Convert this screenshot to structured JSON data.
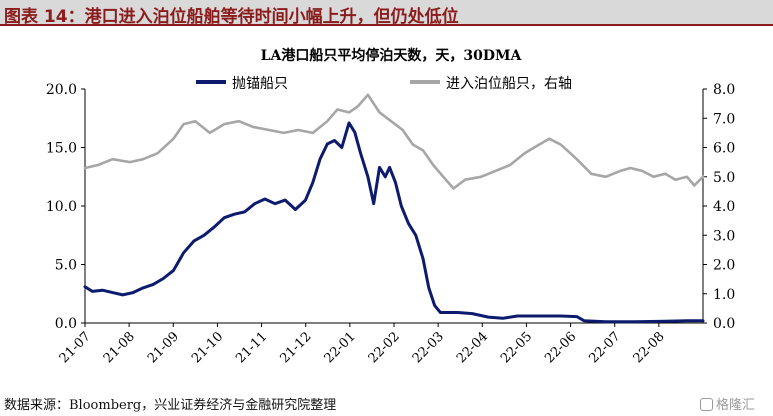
{
  "figure": {
    "title": "图表 14：港口进入泊位船舶等待时间小幅上升，但仍处低位",
    "source": "数据来源：Bloomberg，兴业证券经济与金融研究院整理",
    "watermark": "格隆汇"
  },
  "chart_data": {
    "type": "line",
    "title": "LA港口船只平均停泊天数，天，30DMA",
    "x_ticks": [
      "21-07",
      "21-08",
      "21-09",
      "21-10",
      "21-11",
      "21-12",
      "22-01",
      "22-02",
      "22-03",
      "22-04",
      "22-05",
      "22-06",
      "22-07",
      "22-08"
    ],
    "x_range": [
      "2021-07-01",
      "2022-08-31"
    ],
    "y_left": {
      "range": [
        0,
        20
      ],
      "ticks": [
        "0.0",
        "5.0",
        "10.0",
        "15.0",
        "20.0"
      ]
    },
    "y_right": {
      "range": [
        0,
        8
      ],
      "ticks": [
        "0.0",
        "1.0",
        "2.0",
        "3.0",
        "4.0",
        "5.0",
        "6.0",
        "7.0",
        "8.0"
      ]
    },
    "legend_position": "top",
    "series": [
      {
        "name": "抛锚船只",
        "axis": "left",
        "color": "#0d1b6e",
        "points": [
          [
            "2021-07-01",
            3.1
          ],
          [
            "2021-07-06",
            2.7
          ],
          [
            "2021-07-13",
            2.8
          ],
          [
            "2021-07-20",
            2.6
          ],
          [
            "2021-07-27",
            2.4
          ],
          [
            "2021-08-03",
            2.6
          ],
          [
            "2021-08-10",
            3.0
          ],
          [
            "2021-08-17",
            3.3
          ],
          [
            "2021-08-24",
            3.8
          ],
          [
            "2021-08-31",
            4.5
          ],
          [
            "2021-09-07",
            6.0
          ],
          [
            "2021-09-14",
            7.0
          ],
          [
            "2021-09-21",
            7.5
          ],
          [
            "2021-09-28",
            8.2
          ],
          [
            "2021-10-05",
            9.0
          ],
          [
            "2021-10-12",
            9.3
          ],
          [
            "2021-10-19",
            9.5
          ],
          [
            "2021-10-26",
            10.2
          ],
          [
            "2021-11-02",
            10.6
          ],
          [
            "2021-11-09",
            10.2
          ],
          [
            "2021-11-16",
            10.5
          ],
          [
            "2021-11-23",
            9.7
          ],
          [
            "2021-11-30",
            10.5
          ],
          [
            "2021-12-05",
            12.0
          ],
          [
            "2021-12-10",
            14.0
          ],
          [
            "2021-12-15",
            15.3
          ],
          [
            "2021-12-20",
            15.6
          ],
          [
            "2021-12-25",
            15.0
          ],
          [
            "2021-12-30",
            17.1
          ],
          [
            "2022-01-03",
            16.3
          ],
          [
            "2022-01-07",
            14.5
          ],
          [
            "2022-01-12",
            12.5
          ],
          [
            "2022-01-16",
            10.2
          ],
          [
            "2022-01-20",
            13.3
          ],
          [
            "2022-01-24",
            12.5
          ],
          [
            "2022-01-27",
            13.3
          ],
          [
            "2022-01-31",
            12.0
          ],
          [
            "2022-02-04",
            10.0
          ],
          [
            "2022-02-09",
            8.5
          ],
          [
            "2022-02-14",
            7.5
          ],
          [
            "2022-02-19",
            5.5
          ],
          [
            "2022-02-23",
            3.0
          ],
          [
            "2022-02-27",
            1.5
          ],
          [
            "2022-03-03",
            0.9
          ],
          [
            "2022-03-15",
            0.9
          ],
          [
            "2022-03-25",
            0.8
          ],
          [
            "2022-04-05",
            0.5
          ],
          [
            "2022-04-15",
            0.4
          ],
          [
            "2022-04-25",
            0.6
          ],
          [
            "2022-05-10",
            0.6
          ],
          [
            "2022-05-25",
            0.6
          ],
          [
            "2022-06-05",
            0.55
          ],
          [
            "2022-06-10",
            0.2
          ],
          [
            "2022-06-25",
            0.1
          ],
          [
            "2022-07-15",
            0.1
          ],
          [
            "2022-08-05",
            0.15
          ],
          [
            "2022-08-20",
            0.2
          ],
          [
            "2022-08-31",
            0.2
          ]
        ]
      },
      {
        "name": "进入泊位船只，右轴",
        "axis": "right",
        "color": "#a6a6a6",
        "points": [
          [
            "2021-07-01",
            5.3
          ],
          [
            "2021-07-10",
            5.4
          ],
          [
            "2021-07-20",
            5.6
          ],
          [
            "2021-08-01",
            5.5
          ],
          [
            "2021-08-10",
            5.6
          ],
          [
            "2021-08-20",
            5.8
          ],
          [
            "2021-08-31",
            6.3
          ],
          [
            "2021-09-07",
            6.8
          ],
          [
            "2021-09-15",
            6.9
          ],
          [
            "2021-09-25",
            6.5
          ],
          [
            "2021-10-05",
            6.8
          ],
          [
            "2021-10-15",
            6.9
          ],
          [
            "2021-10-25",
            6.7
          ],
          [
            "2021-11-05",
            6.6
          ],
          [
            "2021-11-15",
            6.5
          ],
          [
            "2021-11-25",
            6.6
          ],
          [
            "2021-12-05",
            6.5
          ],
          [
            "2021-12-15",
            6.9
          ],
          [
            "2021-12-22",
            7.3
          ],
          [
            "2021-12-30",
            7.2
          ],
          [
            "2022-01-05",
            7.4
          ],
          [
            "2022-01-12",
            7.8
          ],
          [
            "2022-01-20",
            7.2
          ],
          [
            "2022-01-28",
            6.9
          ],
          [
            "2022-02-05",
            6.6
          ],
          [
            "2022-02-12",
            6.1
          ],
          [
            "2022-02-19",
            5.9
          ],
          [
            "2022-02-26",
            5.4
          ],
          [
            "2022-03-05",
            5.0
          ],
          [
            "2022-03-12",
            4.6
          ],
          [
            "2022-03-20",
            4.9
          ],
          [
            "2022-03-31",
            5.0
          ],
          [
            "2022-04-10",
            5.2
          ],
          [
            "2022-04-20",
            5.4
          ],
          [
            "2022-04-30",
            5.8
          ],
          [
            "2022-05-10",
            6.1
          ],
          [
            "2022-05-17",
            6.3
          ],
          [
            "2022-05-25",
            6.1
          ],
          [
            "2022-06-05",
            5.6
          ],
          [
            "2022-06-15",
            5.1
          ],
          [
            "2022-06-25",
            5.0
          ],
          [
            "2022-07-05",
            5.2
          ],
          [
            "2022-07-12",
            5.3
          ],
          [
            "2022-07-20",
            5.2
          ],
          [
            "2022-07-28",
            5.0
          ],
          [
            "2022-08-05",
            5.1
          ],
          [
            "2022-08-12",
            4.9
          ],
          [
            "2022-08-20",
            5.0
          ],
          [
            "2022-08-25",
            4.7
          ],
          [
            "2022-08-31",
            5.0
          ]
        ]
      }
    ]
  }
}
